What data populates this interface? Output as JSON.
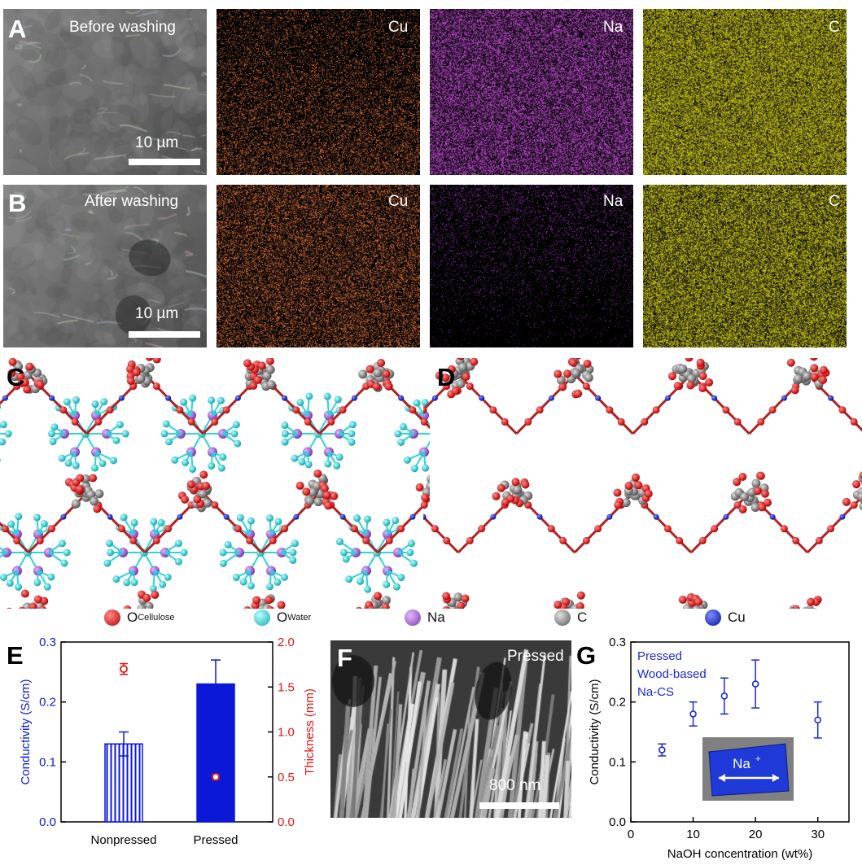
{
  "panels": {
    "A": {
      "label": "A",
      "title": "Before washing",
      "scalebar": "10 µm"
    },
    "B": {
      "label": "B",
      "title": "After washing",
      "scalebar": "10 µm"
    },
    "C": {
      "label": "C"
    },
    "D": {
      "label": "D"
    },
    "E": {
      "label": "E"
    },
    "F": {
      "label": "F",
      "title": "Pressed",
      "scalebar": "800 nm"
    },
    "G": {
      "label": "G"
    }
  },
  "eds_maps": [
    {
      "row": "A",
      "element": "Cu",
      "color": "#e0763f",
      "density": 0.32
    },
    {
      "row": "A",
      "element": "Na",
      "color": "#c44fd6",
      "density": 0.62
    },
    {
      "row": "A",
      "element": "C",
      "color": "#d6d21a",
      "density": 0.78
    },
    {
      "row": "B",
      "element": "Cu",
      "color": "#e0763f",
      "density": 0.42
    },
    {
      "row": "B",
      "element": "Na",
      "color": "#a040c0",
      "density": 0.12
    },
    {
      "row": "B",
      "element": "C",
      "color": "#d6d21a",
      "density": 0.72
    }
  ],
  "legend": [
    {
      "name": "O",
      "sub": "Cellulose",
      "color": "#e01414"
    },
    {
      "name": "O",
      "sub": "Water",
      "color": "#2ad4d8"
    },
    {
      "name": "Na",
      "sub": "",
      "color": "#a15ad6"
    },
    {
      "name": "C",
      "sub": "",
      "color": "#7a7a7a"
    },
    {
      "name": "Cu",
      "sub": "",
      "color": "#1a2ad8"
    }
  ],
  "chart_data": [
    {
      "panel": "E",
      "type": "bar",
      "categories": [
        "Nonpressed",
        "Pressed"
      ],
      "series": [
        {
          "values": [
            0.13,
            0.23
          ],
          "errors": [
            0.02,
            0.04
          ],
          "axis": "left",
          "color": "#0b18d8"
        },
        {
          "values": [
            1.7,
            0.5
          ],
          "errors": [
            0.06,
            0.03
          ],
          "axis": "right",
          "color": "#e01414"
        }
      ],
      "ylabel": "Conductivity (S/cm)",
      "ylim": [
        0.0,
        0.3
      ],
      "yticks": [
        "0.0",
        "0.1",
        "0.2",
        "0.3"
      ],
      "y2label": "Thickness (mm)",
      "y2lim": [
        0.0,
        2.0
      ],
      "y2ticks": [
        "0.0",
        "0.5",
        "1.0",
        "1.5",
        "2.0"
      ]
    },
    {
      "panel": "G",
      "type": "scatter",
      "x": [
        5,
        10,
        15,
        20,
        30
      ],
      "y": [
        0.12,
        0.18,
        0.21,
        0.23,
        0.17
      ],
      "errors": [
        0.01,
        0.02,
        0.03,
        0.04,
        0.03
      ],
      "xlabel": "NaOH concentration (wt%)",
      "ylabel": "Conductivity (S/cm)",
      "xlim": [
        0,
        35
      ],
      "ylim": [
        0.0,
        0.3
      ],
      "xticks": [
        "0",
        "10",
        "20",
        "30"
      ],
      "yticks": [
        "0.0",
        "0.1",
        "0.2",
        "0.3"
      ],
      "annotation": [
        "Pressed",
        "Wood-based",
        "Na-CS"
      ],
      "inset_label": "Na",
      "inset_sup": "+",
      "color": "#1a2ad8"
    }
  ]
}
